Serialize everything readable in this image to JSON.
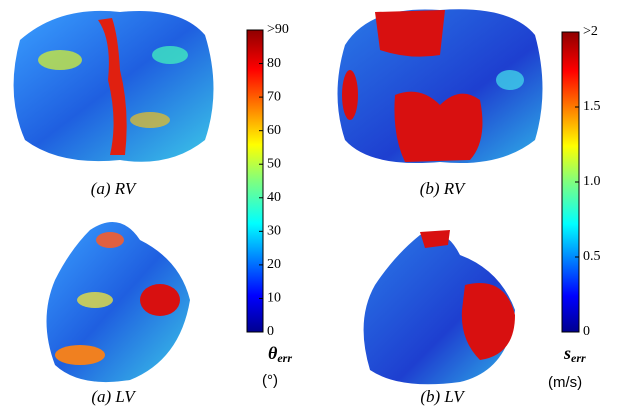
{
  "panels": [
    {
      "caption": "(a) RV"
    },
    {
      "caption": "(b) RV"
    },
    {
      "caption": "(a) LV"
    },
    {
      "caption": "(b) LV"
    }
  ],
  "colorbars": [
    {
      "symbol": "θ",
      "subscript": "err",
      "unit": "(°)",
      "lim": [
        0,
        90
      ],
      "ticks": [
        0,
        10,
        20,
        30,
        40,
        50,
        60,
        70,
        80,
        {
          "value": 90,
          "label": ">90"
        }
      ]
    },
    {
      "symbol": "s",
      "subscript": "err",
      "unit": "(m/s)",
      "lim": [
        0,
        2
      ],
      "ticks": [
        0,
        0.5,
        {
          "value": 1,
          "label": "1.0"
        },
        1.5,
        {
          "value": 2,
          "label": ">2"
        }
      ]
    }
  ]
}
